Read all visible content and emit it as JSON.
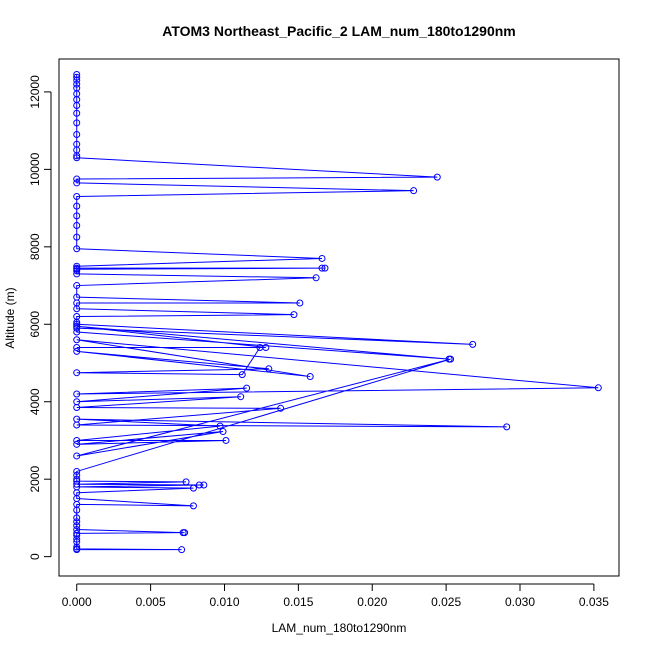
{
  "chart_data": {
    "type": "line",
    "title": "ATOM3 Northeast_Pacific_2 LAM_num_180to1290nm",
    "xlabel": "LAM_num_180to1290nm",
    "ylabel": "Altitude (m)",
    "xlim": [
      -0.0012,
      0.0367
    ],
    "ylim": [
      -500,
      12850
    ],
    "xticks": [
      0.0,
      0.005,
      0.01,
      0.015,
      0.02,
      0.025,
      0.03,
      0.035
    ],
    "xtick_labels": [
      "0.000",
      "0.005",
      "0.010",
      "0.015",
      "0.020",
      "0.025",
      "0.030",
      "0.035"
    ],
    "yticks": [
      0,
      2000,
      4000,
      6000,
      8000,
      10000,
      12000
    ],
    "ytick_labels": [
      "0",
      "2000",
      "4000",
      "6000",
      "8000",
      "10000",
      "12000"
    ],
    "grid": false,
    "marker": "open-circle",
    "series_color": "#0000ff",
    "points": [
      {
        "x": 0.0,
        "y": 12450
      },
      {
        "x": 0.0,
        "y": 12380
      },
      {
        "x": 0.0,
        "y": 12300
      },
      {
        "x": 0.0,
        "y": 12200
      },
      {
        "x": 0.0,
        "y": 12100
      },
      {
        "x": 0.0,
        "y": 11950
      },
      {
        "x": 0.0,
        "y": 11800
      },
      {
        "x": 0.0,
        "y": 11650
      },
      {
        "x": 0.0,
        "y": 11450
      },
      {
        "x": 0.0,
        "y": 11200
      },
      {
        "x": 0.0,
        "y": 10900
      },
      {
        "x": 0.0,
        "y": 10650
      },
      {
        "x": 0.0,
        "y": 10500
      },
      {
        "x": 0.0,
        "y": 10350
      },
      {
        "x": 0.0,
        "y": 10300
      },
      {
        "x": 0.0244,
        "y": 9800
      },
      {
        "x": 0.0,
        "y": 9750
      },
      {
        "x": 0.0,
        "y": 9650
      },
      {
        "x": 0.0228,
        "y": 9450
      },
      {
        "x": 0.0,
        "y": 9300
      },
      {
        "x": 0.0,
        "y": 9050
      },
      {
        "x": 0.0,
        "y": 8800
      },
      {
        "x": 0.0,
        "y": 8550
      },
      {
        "x": 0.0,
        "y": 8250
      },
      {
        "x": 0.0,
        "y": 7950
      },
      {
        "x": 0.0166,
        "y": 7700
      },
      {
        "x": 0.0,
        "y": 7500
      },
      {
        "x": 0.0,
        "y": 7450
      },
      {
        "x": 0.0168,
        "y": 7450
      },
      {
        "x": 0.0166,
        "y": 7450
      },
      {
        "x": 0.0,
        "y": 7420
      },
      {
        "x": 0.0,
        "y": 7380
      },
      {
        "x": 0.0,
        "y": 7300
      },
      {
        "x": 0.0162,
        "y": 7200
      },
      {
        "x": 0.0,
        "y": 7000
      },
      {
        "x": 0.0,
        "y": 6700
      },
      {
        "x": 0.0151,
        "y": 6550
      },
      {
        "x": 0.0,
        "y": 6550
      },
      {
        "x": 0.0,
        "y": 6400
      },
      {
        "x": 0.0147,
        "y": 6250
      },
      {
        "x": 0.0,
        "y": 6200
      },
      {
        "x": 0.0,
        "y": 6050
      },
      {
        "x": 0.0,
        "y": 6000
      },
      {
        "x": 0.0268,
        "y": 5480
      },
      {
        "x": 0.0,
        "y": 5900
      },
      {
        "x": 0.0,
        "y": 5800
      },
      {
        "x": 0.0252,
        "y": 5100
      },
      {
        "x": 0.0,
        "y": 5950
      },
      {
        "x": 0.0128,
        "y": 5400
      },
      {
        "x": 0.0,
        "y": 5400
      },
      {
        "x": 0.0124,
        "y": 5400
      },
      {
        "x": 0.0112,
        "y": 4700
      },
      {
        "x": 0.0,
        "y": 4750
      },
      {
        "x": 0.013,
        "y": 4850
      },
      {
        "x": 0.0,
        "y": 5300
      },
      {
        "x": 0.0158,
        "y": 4650
      },
      {
        "x": 0.0,
        "y": 5600
      },
      {
        "x": 0.0353,
        "y": 4360
      },
      {
        "x": 0.0,
        "y": 4200
      },
      {
        "x": 0.0115,
        "y": 4350
      },
      {
        "x": 0.0,
        "y": 4000
      },
      {
        "x": 0.0111,
        "y": 4130
      },
      {
        "x": 0.0,
        "y": 3850
      },
      {
        "x": 0.0138,
        "y": 3830
      },
      {
        "x": 0.0,
        "y": 3400
      },
      {
        "x": 0.0291,
        "y": 3350
      },
      {
        "x": 0.0,
        "y": 3550
      },
      {
        "x": 0.0097,
        "y": 3370
      },
      {
        "x": 0.0,
        "y": 3000
      },
      {
        "x": 0.0101,
        "y": 3000
      },
      {
        "x": 0.0,
        "y": 2900
      },
      {
        "x": 0.0099,
        "y": 3230
      },
      {
        "x": 0.0,
        "y": 2600
      },
      {
        "x": 0.0253,
        "y": 5100
      },
      {
        "x": 0.0,
        "y": 2200
      },
      {
        "x": 0.0,
        "y": 2100
      },
      {
        "x": 0.0,
        "y": 2000
      },
      {
        "x": 0.0,
        "y": 1950
      },
      {
        "x": 0.0074,
        "y": 1930
      },
      {
        "x": 0.0,
        "y": 1870
      },
      {
        "x": 0.0086,
        "y": 1850
      },
      {
        "x": 0.0083,
        "y": 1850
      },
      {
        "x": 0.0,
        "y": 1800
      },
      {
        "x": 0.0079,
        "y": 1770
      },
      {
        "x": 0.0,
        "y": 1650
      },
      {
        "x": 0.0,
        "y": 1500
      },
      {
        "x": 0.0079,
        "y": 1310
      },
      {
        "x": 0.0,
        "y": 1350
      },
      {
        "x": 0.0,
        "y": 1200
      },
      {
        "x": 0.0,
        "y": 1000
      },
      {
        "x": 0.0,
        "y": 900
      },
      {
        "x": 0.0,
        "y": 800
      },
      {
        "x": 0.0,
        "y": 700
      },
      {
        "x": 0.0072,
        "y": 620
      },
      {
        "x": 0.0073,
        "y": 620
      },
      {
        "x": 0.0,
        "y": 600
      },
      {
        "x": 0.0,
        "y": 550
      },
      {
        "x": 0.0,
        "y": 450
      },
      {
        "x": 0.0,
        "y": 380
      },
      {
        "x": 0.0,
        "y": 250
      },
      {
        "x": 0.0,
        "y": 200
      },
      {
        "x": 0.0071,
        "y": 180
      },
      {
        "x": 0.0,
        "y": 180
      }
    ]
  }
}
